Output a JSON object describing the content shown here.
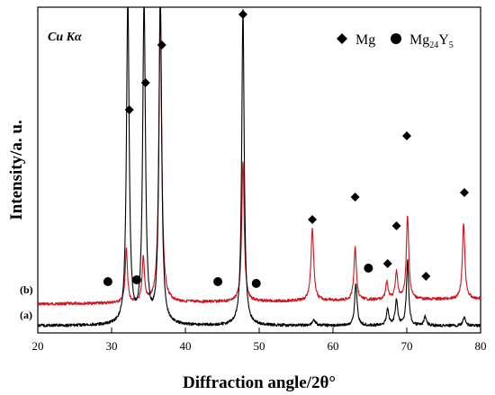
{
  "chart_data": {
    "type": "line",
    "radiation": "Cu Kα",
    "xlabel": "Diffraction angle/2θ°",
    "ylabel": "Intensity/a. u.",
    "xlim": [
      20,
      80
    ],
    "xticks": [
      "20",
      "30",
      "40",
      "50",
      "60",
      "70",
      "80"
    ],
    "colors": {
      "a": "#000000",
      "b": "#d0101c"
    },
    "legend": [
      {
        "marker": "diamond",
        "label": "Mg"
      },
      {
        "marker": "circle",
        "label": "Mg",
        "sub": "24",
        "label2": "Y",
        "sub2": "5"
      }
    ],
    "series": [
      {
        "name": "(a)",
        "color": "#000000",
        "baseline": 362,
        "peaks": [
          {
            "x": 32.2,
            "height": 360,
            "width": 0.22
          },
          {
            "x": 34.4,
            "height": 360,
            "width": 0.22
          },
          {
            "x": 36.6,
            "height": 360,
            "width": 0.22
          },
          {
            "x": 47.8,
            "height": 350,
            "width": 0.2
          },
          {
            "x": 57.4,
            "height": 6,
            "width": 0.3
          },
          {
            "x": 63.1,
            "height": 46,
            "width": 0.2
          },
          {
            "x": 67.4,
            "height": 18,
            "width": 0.2
          },
          {
            "x": 68.6,
            "height": 28,
            "width": 0.2
          },
          {
            "x": 70.1,
            "height": 72,
            "width": 0.18
          },
          {
            "x": 72.5,
            "height": 10,
            "width": 0.2
          },
          {
            "x": 77.8,
            "height": 10,
            "width": 0.2
          }
        ]
      },
      {
        "name": "(b)",
        "color": "#d0101c",
        "baseline": 338,
        "peaks": [
          {
            "x": 32.0,
            "height": 60,
            "width": 0.18
          },
          {
            "x": 34.3,
            "height": 50,
            "width": 0.18
          },
          {
            "x": 36.6,
            "height": 340,
            "width": 0.22
          },
          {
            "x": 47.8,
            "height": 156,
            "width": 0.2
          },
          {
            "x": 57.2,
            "height": 80,
            "width": 0.22
          },
          {
            "x": 63.0,
            "height": 58,
            "width": 0.2
          },
          {
            "x": 67.3,
            "height": 20,
            "width": 0.2
          },
          {
            "x": 68.6,
            "height": 30,
            "width": 0.2
          },
          {
            "x": 70.1,
            "height": 92,
            "width": 0.2
          },
          {
            "x": 77.7,
            "height": 84,
            "width": 0.2
          }
        ]
      }
    ],
    "markers": [
      {
        "type": "diamond",
        "x": 32.4,
        "y": 122
      },
      {
        "type": "diamond",
        "x": 34.6,
        "y": 92
      },
      {
        "type": "diamond",
        "x": 36.8,
        "y": 50
      },
      {
        "type": "diamond",
        "x": 47.8,
        "y": 16
      },
      {
        "type": "diamond",
        "x": 57.2,
        "y": 244
      },
      {
        "type": "diamond",
        "x": 63.0,
        "y": 219
      },
      {
        "type": "diamond",
        "x": 67.4,
        "y": 293
      },
      {
        "type": "diamond",
        "x": 68.6,
        "y": 251
      },
      {
        "type": "diamond",
        "x": 70.0,
        "y": 151
      },
      {
        "type": "diamond",
        "x": 72.6,
        "y": 307
      },
      {
        "type": "diamond",
        "x": 77.8,
        "y": 214
      },
      {
        "type": "circle",
        "x": 29.5,
        "y": 313
      },
      {
        "type": "circle",
        "x": 33.4,
        "y": 311
      },
      {
        "type": "circle",
        "x": 44.4,
        "y": 313
      },
      {
        "type": "circle",
        "x": 49.6,
        "y": 315
      },
      {
        "type": "circle",
        "x": 64.8,
        "y": 298
      }
    ]
  }
}
